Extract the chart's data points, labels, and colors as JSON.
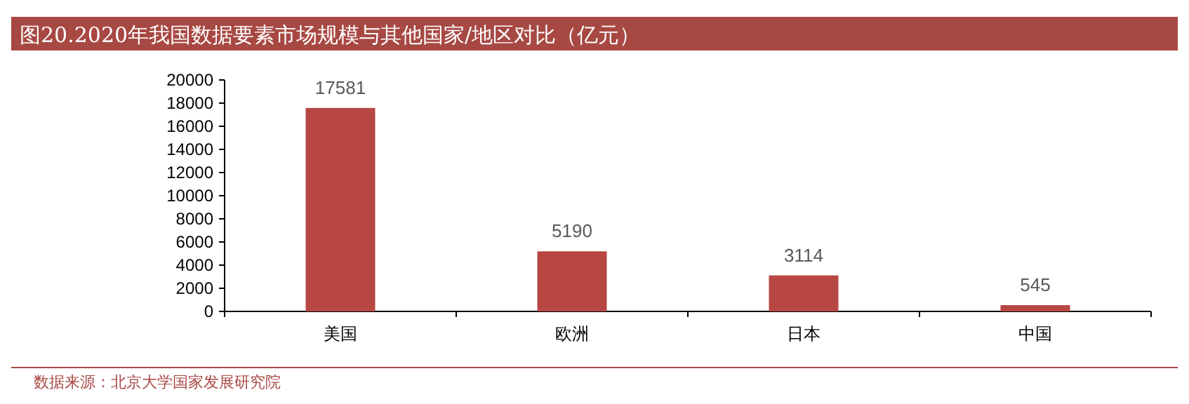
{
  "chart_data": {
    "type": "bar",
    "title": "图20.2020年我国数据要素市场规模与其他国家/地区对比（亿元）",
    "categories": [
      "美国",
      "欧洲",
      "日本",
      "中国"
    ],
    "values": [
      17581,
      5190,
      3114,
      545
    ],
    "color": "#b84744",
    "ylim": [
      0,
      20000
    ],
    "yticks": [
      0,
      2000,
      4000,
      6000,
      8000,
      10000,
      12000,
      14000,
      16000,
      18000,
      20000
    ],
    "data_labels": true,
    "annotations": [
      "数据来源：北京大学国家发展研究院"
    ]
  }
}
